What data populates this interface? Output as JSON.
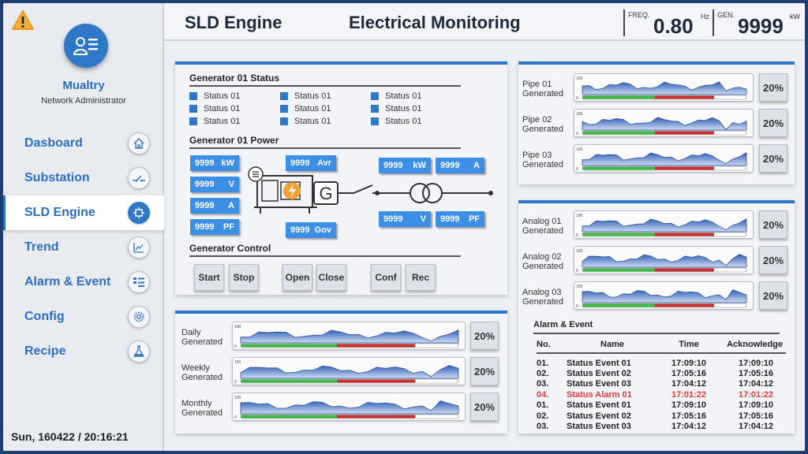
{
  "colors": {
    "accent": "#2f78c8",
    "tag": "#3d8fe6",
    "alarm": "#e23a3a",
    "bar_green": "#3fb845",
    "bar_red": "#c8302e",
    "border": "#1f3c73"
  },
  "user": {
    "name": "Mualtry",
    "role": "Network Administrator"
  },
  "nav": [
    {
      "label": "Dasboard",
      "icon": "home-icon",
      "active": false
    },
    {
      "label": "Substation",
      "icon": "switch-icon",
      "active": false
    },
    {
      "label": "SLD Engine",
      "icon": "sld-icon",
      "active": true
    },
    {
      "label": "Trend",
      "icon": "trend-chart-icon",
      "active": false
    },
    {
      "label": "Alarm & Event",
      "icon": "list-icon",
      "active": false
    },
    {
      "label": "Config",
      "icon": "gear-icon",
      "active": false
    },
    {
      "label": "Recipe",
      "icon": "flask-icon",
      "active": false
    }
  ],
  "datetime": "Sun, 160422 / 20:16:21",
  "header": {
    "app_title": "SLD Engine",
    "page_title": "Electrical Monitoring",
    "freq": {
      "label": "FREQ.",
      "value": "0.80",
      "unit": "Hz"
    },
    "gen": {
      "label": "GEN.",
      "value": "9999",
      "unit": "kW"
    }
  },
  "generator_status": {
    "title": "Generator 01 Status",
    "items": [
      "Status 01",
      "Status 01",
      "Status 01",
      "Status 01",
      "Status 01",
      "Status 01",
      "Status 01",
      "Status 01",
      "Status 01"
    ]
  },
  "generator_power": {
    "title": "Generator 01 Power",
    "left_tags": [
      {
        "value": "9999",
        "unit": "kW"
      },
      {
        "value": "9999",
        "unit": "V"
      },
      {
        "value": "9999",
        "unit": "A"
      },
      {
        "value": "9999",
        "unit": "PF"
      }
    ],
    "avr_tag": {
      "value": "9999",
      "unit": "Avr"
    },
    "gov_tag": {
      "value": "9999",
      "unit": "Gov"
    },
    "generator_symbol": "G",
    "right_tags": [
      {
        "value": "9999",
        "unit": "kW"
      },
      {
        "value": "9999",
        "unit": "A"
      },
      {
        "value": "9999",
        "unit": "V"
      },
      {
        "value": "9999",
        "unit": "PF"
      }
    ]
  },
  "generator_control": {
    "title": "Generator Control",
    "buttons": [
      "Start",
      "Stop",
      "Open",
      "Close",
      "Conf",
      "Rec"
    ]
  },
  "pipes": [
    {
      "label1": "Pipe 01",
      "label2": "Generated",
      "percent": "20%",
      "fill": 0.8
    },
    {
      "label1": "Pipe 02",
      "label2": "Generated",
      "percent": "20%",
      "fill": 0.8
    },
    {
      "label1": "Pipe 03",
      "label2": "Generated",
      "percent": "20%",
      "fill": 0.8
    }
  ],
  "analogs": [
    {
      "label1": "Analog 01",
      "label2": "Generated",
      "percent": "20%",
      "fill": 0.8
    },
    {
      "label1": "Analog 02",
      "label2": "Generated",
      "percent": "20%",
      "fill": 0.8
    },
    {
      "label1": "Analog 03",
      "label2": "Generated",
      "percent": "20%",
      "fill": 0.8
    }
  ],
  "periods": [
    {
      "label1": "Daily",
      "label2": "Generated",
      "percent": "20%",
      "fill": 0.8
    },
    {
      "label1": "Weekly",
      "label2": "Generated",
      "percent": "20%",
      "fill": 0.8
    },
    {
      "label1": "Monthly",
      "label2": "Generated",
      "percent": "20%",
      "fill": 0.8
    }
  ],
  "mini_chart": {
    "ymax": "100",
    "ymin": "0"
  },
  "alarm_event": {
    "title": "Alarm & Event",
    "columns": [
      "No.",
      "Name",
      "Time",
      "Acknowledge"
    ],
    "rows": [
      {
        "no": "01.",
        "name": "Status Event 01",
        "time": "17:09:10",
        "ack": "17:09:10",
        "alarm": false
      },
      {
        "no": "02.",
        "name": "Status Event 02",
        "time": "17:05:16",
        "ack": "17:05:16",
        "alarm": false
      },
      {
        "no": "03.",
        "name": "Status Event 03",
        "time": "17:04:12",
        "ack": "17:04:12",
        "alarm": false
      },
      {
        "no": "04.",
        "name": "Status Alarm 01",
        "time": "17:01:22",
        "ack": "17:01:22",
        "alarm": true
      },
      {
        "no": "01.",
        "name": "Status Event 01",
        "time": "17:09:10",
        "ack": "17:09:10",
        "alarm": false
      },
      {
        "no": "02.",
        "name": "Status Event 02",
        "time": "17:05:16",
        "ack": "17:05:16",
        "alarm": false
      },
      {
        "no": "03.",
        "name": "Status Event 03",
        "time": "17:04:12",
        "ack": "17:04:12",
        "alarm": false
      }
    ]
  }
}
